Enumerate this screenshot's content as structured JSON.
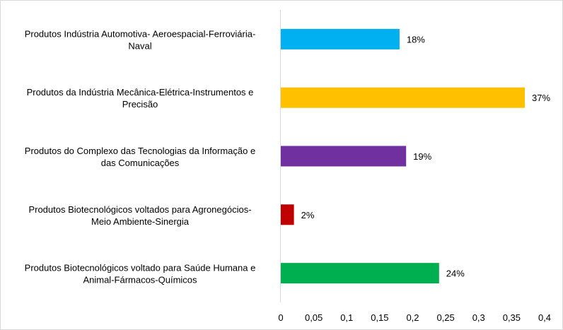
{
  "chart_data": {
    "type": "bar",
    "orientation": "horizontal",
    "title": "",
    "xlabel": "",
    "ylabel": "",
    "xlim": [
      0,
      0.4
    ],
    "grid": false,
    "legend": "none",
    "x_ticks": [
      "0",
      "0,05",
      "0,1",
      "0,15",
      "0,2",
      "0,25",
      "0,3",
      "0,35",
      "0,4"
    ],
    "x_tick_values": [
      0,
      0.05,
      0.1,
      0.15,
      0.2,
      0.25,
      0.3,
      0.35,
      0.4
    ],
    "categories": [
      {
        "lines": [
          "Produtos Indústria Automotiva- Aeroespacial-Ferroviária-",
          "Naval"
        ]
      },
      {
        "lines": [
          "Produtos da Indústria Mecânica-Elétrica-Instrumentos e",
          "Precisão"
        ]
      },
      {
        "lines": [
          "Produtos do Complexo das Tecnologias da Informação e",
          "das Comunicações"
        ]
      },
      {
        "lines": [
          "Produtos  Biotecnológicos voltados para Agronegócios-",
          "Meio Ambiente-Sinergia"
        ]
      },
      {
        "lines": [
          "Produtos Biotecnológicos voltado para Saúde Humana e",
          "Animal-Fármacos-Químicos"
        ]
      }
    ],
    "values": [
      0.18,
      0.37,
      0.19,
      0.02,
      0.24
    ],
    "data_labels": [
      "18%",
      "37%",
      "19%",
      "2%",
      "24%"
    ],
    "colors": [
      "#00b0f0",
      "#ffc000",
      "#7030a0",
      "#c00000",
      "#00b050"
    ]
  },
  "style": {
    "axis_color": "#d9d9d9",
    "text_color": "#000000"
  }
}
